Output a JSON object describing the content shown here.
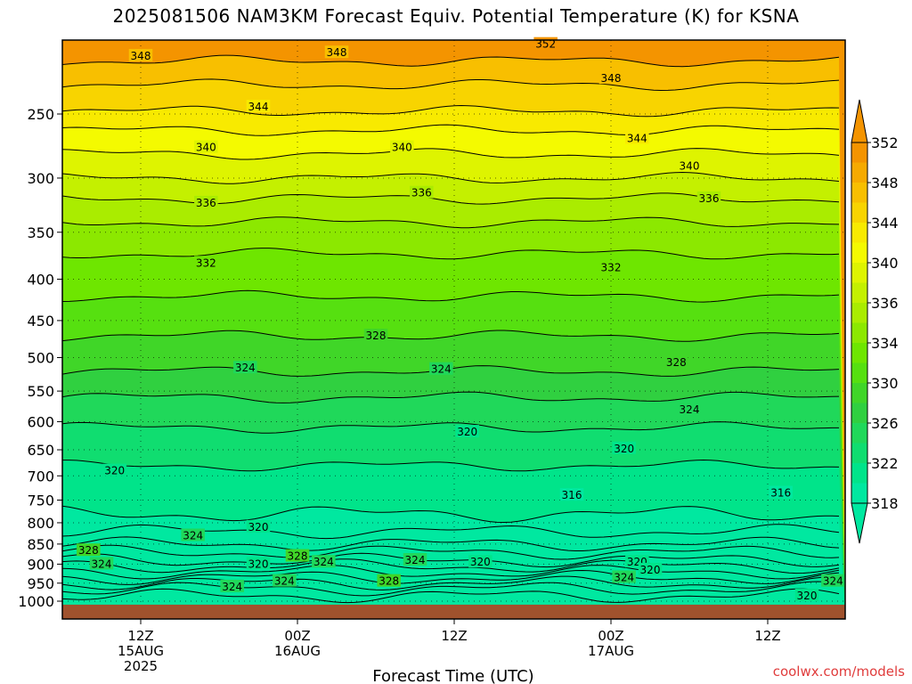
{
  "chart_data": {
    "type": "contour",
    "title": "2025081506 NAM3KM Forecast Equiv. Potential Temperature (K) for KSNA",
    "xlabel": "Forecast Time (UTC)",
    "ylabel": "",
    "y_scale": "log-pressure (hPa, inverted)",
    "ylim": [
      1020,
      200
    ],
    "xlim_hours": [
      0,
      60
    ],
    "y_ticks": [
      250,
      300,
      350,
      400,
      450,
      500,
      550,
      600,
      650,
      700,
      750,
      800,
      850,
      900,
      950,
      1000
    ],
    "x_ticks": [
      {
        "hour": 6,
        "lines": [
          "12Z",
          "15AUG",
          "2025"
        ]
      },
      {
        "hour": 18,
        "lines": [
          "00Z",
          "16AUG"
        ]
      },
      {
        "hour": 30,
        "lines": [
          "12Z"
        ]
      },
      {
        "hour": 42,
        "lines": [
          "00Z",
          "17AUG"
        ]
      },
      {
        "hour": 54,
        "lines": [
          "12Z"
        ]
      }
    ],
    "colorbar": {
      "levels": [
        318,
        320,
        322,
        324,
        326,
        328,
        330,
        332,
        334,
        336,
        338,
        340,
        342,
        344,
        346,
        348,
        350,
        352
      ],
      "labels": [
        318,
        322,
        326,
        330,
        334,
        336,
        340,
        344,
        348,
        352
      ],
      "colors": [
        "#00e8a0",
        "#00e48a",
        "#10dd70",
        "#20d85a",
        "#30d040",
        "#40d628",
        "#56e010",
        "#6ee600",
        "#8ce800",
        "#aaec00",
        "#c4f000",
        "#def400",
        "#f4fa00",
        "#f8ea00",
        "#f8d400",
        "#f8bf00",
        "#f6aa00",
        "#f49400"
      ]
    },
    "contour_interval_K": 2,
    "series": [
      {
        "pressure_hPa": 215,
        "theta_e_K": 348
      },
      {
        "pressure_hPa": 230,
        "theta_e_K": 346
      },
      {
        "pressure_hPa": 248,
        "theta_e_K": 344
      },
      {
        "pressure_hPa": 262,
        "theta_e_K": 342
      },
      {
        "pressure_hPa": 280,
        "theta_e_K": 340
      },
      {
        "pressure_hPa": 300,
        "theta_e_K": 338
      },
      {
        "pressure_hPa": 318,
        "theta_e_K": 336
      },
      {
        "pressure_hPa": 340,
        "theta_e_K": 334
      },
      {
        "pressure_hPa": 372,
        "theta_e_K": 332
      },
      {
        "pressure_hPa": 420,
        "theta_e_K": 330
      },
      {
        "pressure_hPa": 470,
        "theta_e_K": 328
      },
      {
        "pressure_hPa": 520,
        "theta_e_K": 326
      },
      {
        "pressure_hPa": 560,
        "theta_e_K": 324
      },
      {
        "pressure_hPa": 610,
        "theta_e_K": 322
      },
      {
        "pressure_hPa": 680,
        "theta_e_K": 320
      },
      {
        "pressure_hPa": 780,
        "theta_e_K": 318
      }
    ],
    "contour_labels": [
      {
        "hour": 6,
        "pressure_hPa": 212,
        "text": "348"
      },
      {
        "hour": 21,
        "pressure_hPa": 210,
        "text": "348"
      },
      {
        "hour": 37,
        "pressure_hPa": 205,
        "text": "352"
      },
      {
        "hour": 42,
        "pressure_hPa": 226,
        "text": "348"
      },
      {
        "hour": 15,
        "pressure_hPa": 245,
        "text": "344"
      },
      {
        "hour": 44,
        "pressure_hPa": 268,
        "text": "344"
      },
      {
        "hour": 11,
        "pressure_hPa": 275,
        "text": "340"
      },
      {
        "hour": 26,
        "pressure_hPa": 275,
        "text": "340"
      },
      {
        "hour": 48,
        "pressure_hPa": 290,
        "text": "340"
      },
      {
        "hour": 11,
        "pressure_hPa": 322,
        "text": "336"
      },
      {
        "hour": 27.5,
        "pressure_hPa": 313,
        "text": "336"
      },
      {
        "hour": 49.5,
        "pressure_hPa": 318,
        "text": "336"
      },
      {
        "hour": 11,
        "pressure_hPa": 382,
        "text": "332"
      },
      {
        "hour": 42,
        "pressure_hPa": 387,
        "text": "332"
      },
      {
        "hour": 24,
        "pressure_hPa": 470,
        "text": "328"
      },
      {
        "hour": 47,
        "pressure_hPa": 507,
        "text": "328"
      },
      {
        "hour": 14,
        "pressure_hPa": 515,
        "text": "324"
      },
      {
        "hour": 29,
        "pressure_hPa": 517,
        "text": "324"
      },
      {
        "hour": 48,
        "pressure_hPa": 580,
        "text": "324"
      },
      {
        "hour": 31,
        "pressure_hPa": 618,
        "text": "320"
      },
      {
        "hour": 43,
        "pressure_hPa": 648,
        "text": "320"
      },
      {
        "hour": 4,
        "pressure_hPa": 690,
        "text": "320"
      },
      {
        "hour": 39,
        "pressure_hPa": 740,
        "text": "316"
      },
      {
        "hour": 55,
        "pressure_hPa": 735,
        "text": "316"
      },
      {
        "hour": 15,
        "pressure_hPa": 810,
        "text": "320"
      },
      {
        "hour": 10,
        "pressure_hPa": 830,
        "text": "324"
      },
      {
        "hour": 2,
        "pressure_hPa": 866,
        "text": "328"
      },
      {
        "hour": 18,
        "pressure_hPa": 880,
        "text": "328"
      },
      {
        "hour": 3,
        "pressure_hPa": 900,
        "text": "324"
      },
      {
        "hour": 15,
        "pressure_hPa": 900,
        "text": "320"
      },
      {
        "hour": 20,
        "pressure_hPa": 895,
        "text": "324"
      },
      {
        "hour": 27,
        "pressure_hPa": 890,
        "text": "324"
      },
      {
        "hour": 32,
        "pressure_hPa": 895,
        "text": "320"
      },
      {
        "hour": 44,
        "pressure_hPa": 895,
        "text": "320"
      },
      {
        "hour": 45,
        "pressure_hPa": 915,
        "text": "320"
      },
      {
        "hour": 17,
        "pressure_hPa": 945,
        "text": "324"
      },
      {
        "hour": 25,
        "pressure_hPa": 945,
        "text": "328"
      },
      {
        "hour": 43,
        "pressure_hPa": 935,
        "text": "324"
      },
      {
        "hour": 59,
        "pressure_hPa": 945,
        "text": "324"
      },
      {
        "hour": 13,
        "pressure_hPa": 960,
        "text": "324"
      },
      {
        "hour": 57,
        "pressure_hPa": 985,
        "text": "320"
      }
    ],
    "terrain_below_hPa": 1010,
    "terrain_color": "#a0522d"
  },
  "watermark": "coolwx.com/models"
}
